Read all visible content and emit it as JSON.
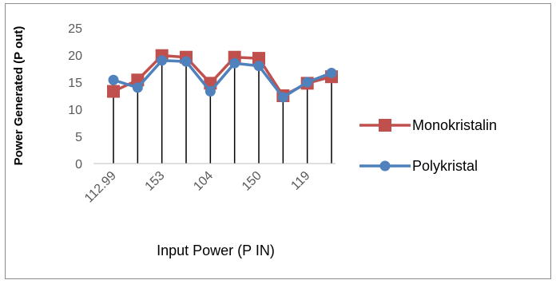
{
  "chart_data": {
    "type": "line",
    "title": "",
    "xlabel": "Input Power (P IN)",
    "ylabel": "Power Generated  (P out)",
    "ylim": [
      0,
      25
    ],
    "yticks": [
      0,
      5,
      10,
      15,
      20,
      25
    ],
    "x_tick_labels": [
      "112.99",
      "",
      "153",
      "",
      "104",
      "",
      "150",
      "",
      "119",
      ""
    ],
    "grid": false,
    "drop_lines": true,
    "legend_position": "right",
    "series": [
      {
        "name": "Monokristalin",
        "color": "#c0504d",
        "marker": "square",
        "values": [
          13.3,
          15.4,
          19.9,
          19.6,
          14.8,
          19.6,
          19.4,
          12.5,
          14.8,
          16.0
        ]
      },
      {
        "name": "Polykristal",
        "color": "#4f81bd",
        "marker": "circle",
        "values": [
          15.4,
          14.0,
          19.0,
          18.8,
          13.3,
          18.5,
          18.0,
          12.2,
          15.0,
          16.7
        ]
      }
    ]
  }
}
